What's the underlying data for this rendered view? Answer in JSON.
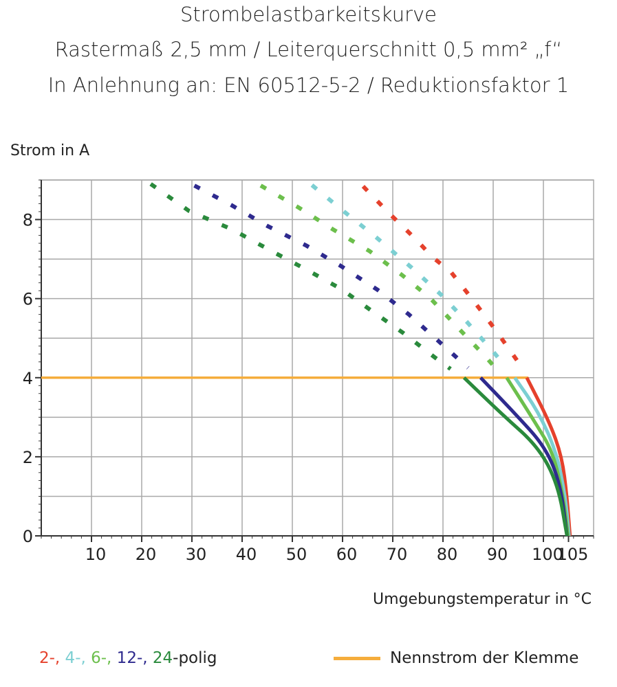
{
  "titles": [
    "Strombelastbarkeitskurve",
    "Rastermaß 2,5 mm / Leiterquerschnitt 0,5 mm² „f“",
    "In Anlehnung an: EN 60512-5-2 / Reduktionsfaktor 1"
  ],
  "chart_data": {
    "type": "line",
    "title": "Strombelastbarkeitskurve",
    "xlabel": "Umgebungstemperatur in °C",
    "ylabel": "Strom in A",
    "xlim": [
      0,
      110
    ],
    "ylim": [
      0,
      9
    ],
    "xticks": [
      10,
      20,
      30,
      40,
      50,
      60,
      70,
      80,
      90,
      100,
      105
    ],
    "yticks": [
      0,
      2,
      4,
      6,
      8
    ],
    "grid": true,
    "legend_placement": "bottom",
    "series": [
      {
        "name": "2-",
        "color": "#e5412c",
        "dashed": [
          [
            64.1,
            8.84
          ],
          [
            69.5,
            8.13
          ],
          [
            74.6,
            7.5
          ],
          [
            77.9,
            7.05
          ],
          [
            81.6,
            6.67
          ],
          [
            86,
            5.96
          ],
          [
            90.4,
            5.22
          ],
          [
            95.8,
            4.25
          ]
        ],
        "solid": [
          [
            96.7,
            4.0
          ],
          [
            101.2,
            2.88
          ],
          [
            103.7,
            2.0
          ],
          [
            104.7,
            0.98
          ],
          [
            105.3,
            0.0
          ]
        ]
      },
      {
        "name": "4-",
        "color": "#7ccfd2",
        "dashed": [
          [
            53.9,
            8.87
          ],
          [
            60.3,
            8.2
          ],
          [
            66.8,
            7.54
          ],
          [
            73.8,
            6.78
          ],
          [
            79.7,
            6.09
          ],
          [
            84.7,
            5.42
          ],
          [
            90,
            4.66
          ],
          [
            92.4,
            4.29
          ]
        ],
        "solid": [
          [
            94.3,
            4.0
          ],
          [
            99,
            3.14
          ],
          [
            102.6,
            2.12
          ],
          [
            104.4,
            0.98
          ],
          [
            105.1,
            0.0
          ]
        ]
      },
      {
        "name": "6-",
        "color": "#6cbf4c",
        "dashed": [
          [
            43.7,
            8.86
          ],
          [
            51.3,
            8.3
          ],
          [
            58.1,
            7.75
          ],
          [
            65.4,
            7.2
          ],
          [
            71.8,
            6.6
          ],
          [
            77.4,
            6.02
          ],
          [
            82.8,
            5.29
          ],
          [
            88.7,
            4.5
          ],
          [
            91.1,
            4.15
          ]
        ],
        "solid": [
          [
            92.7,
            4.0
          ],
          [
            98.3,
            2.88
          ],
          [
            101.9,
            2.12
          ],
          [
            104,
            0.98
          ],
          [
            104.9,
            0.0
          ]
        ]
      },
      {
        "name": "12-",
        "color": "#2e2a8e",
        "dashed": [
          [
            30.5,
            8.86
          ],
          [
            37.8,
            8.37
          ],
          [
            45,
            7.84
          ],
          [
            52.8,
            7.34
          ],
          [
            59.6,
            6.83
          ],
          [
            67,
            6.22
          ],
          [
            73.2,
            5.6
          ],
          [
            79.5,
            4.88
          ],
          [
            85,
            4.25
          ]
        ],
        "solid": [
          [
            87.5,
            4.0
          ],
          [
            94,
            3.14
          ],
          [
            100.4,
            2.25
          ],
          [
            103.4,
            1.3
          ],
          [
            104.7,
            0.0
          ]
        ]
      },
      {
        "name": "24-",
        "color": "#2a8a3c",
        "dashed": [
          [
            21.8,
            8.9
          ],
          [
            29.4,
            8.22
          ],
          [
            38,
            7.75
          ],
          [
            45.9,
            7.2
          ],
          [
            53,
            6.72
          ],
          [
            59.8,
            6.24
          ],
          [
            65.7,
            5.7
          ],
          [
            72.2,
            5.12
          ],
          [
            78.2,
            4.53
          ],
          [
            81.5,
            4.22
          ]
        ],
        "solid": [
          [
            84.2,
            4.0
          ],
          [
            91.8,
            3.07
          ],
          [
            99,
            2.25
          ],
          [
            102.9,
            1.3
          ],
          [
            104.7,
            0.0
          ]
        ]
      }
    ],
    "reference_line": {
      "name": "Nennstrom der Klemme",
      "y": 4,
      "color": "#f5ad3c"
    }
  },
  "legend": {
    "series_labels": [
      "2-,",
      " 4-,",
      " 6-,",
      " 12-,",
      " 24"
    ],
    "series_suffix": "-polig",
    "reference_label": "Nennstrom der Klemme"
  }
}
